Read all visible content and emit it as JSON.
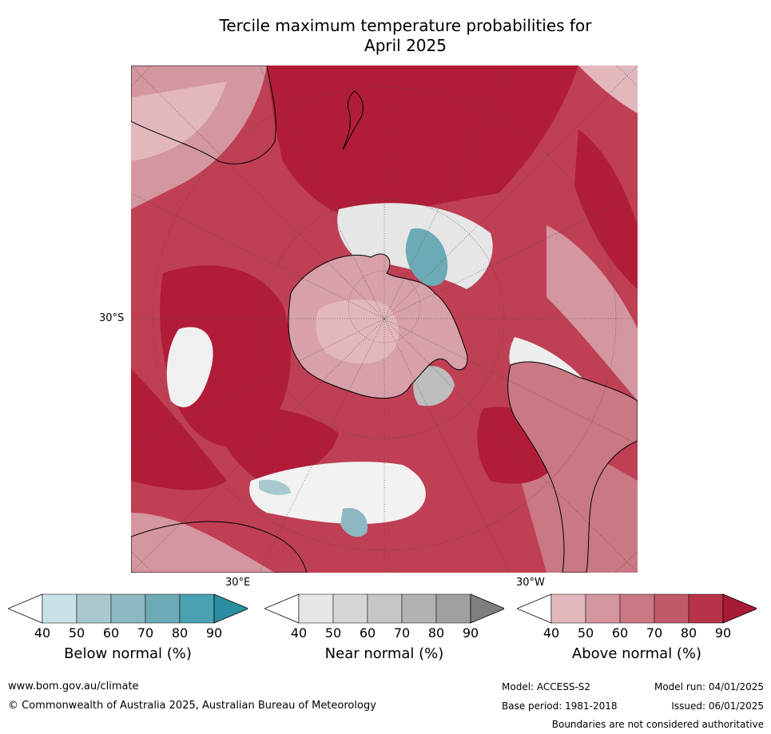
{
  "title_line1": "Tercile maximum temperature probabilities for",
  "title_line2": "April 2025",
  "map": {
    "lat_label": "30°S",
    "lon_label_east": "30°E",
    "lon_label_west": "30°W"
  },
  "legends": [
    {
      "title": "Below normal (%)",
      "ticks": [
        "40",
        "50",
        "60",
        "70",
        "80",
        "90"
      ],
      "colors": [
        "#ffffff",
        "#c9e2e8",
        "#a9c9cf",
        "#8db8c2",
        "#6cabb5",
        "#4aa1b1",
        "#2b8ea0"
      ]
    },
    {
      "title": "Near normal (%)",
      "ticks": [
        "40",
        "50",
        "60",
        "70",
        "80",
        "90"
      ],
      "colors": [
        "#ffffff",
        "#e6e6e6",
        "#d6d6d6",
        "#c6c6c6",
        "#b2b2b2",
        "#a0a0a0",
        "#7e7e7e"
      ]
    },
    {
      "title": "Above normal (%)",
      "ticks": [
        "40",
        "50",
        "60",
        "70",
        "80",
        "90"
      ],
      "colors": [
        "#ffffff",
        "#e2b8bd",
        "#d4969f",
        "#c97884",
        "#c05a69",
        "#b8334a",
        "#a81b35"
      ]
    }
  ],
  "footer": {
    "url": "www.bom.gov.au/climate",
    "copyright": "© Commonwealth of Australia 2025, Australian Bureau of Meteorology",
    "model": "Model: ACCESS-S2",
    "model_run": "Model run: 04/01/2025",
    "base_period": "Base period: 1981-2018",
    "issued": "Issued: 06/01/2025",
    "disclaimer": "Boundaries are not considered authoritative"
  }
}
